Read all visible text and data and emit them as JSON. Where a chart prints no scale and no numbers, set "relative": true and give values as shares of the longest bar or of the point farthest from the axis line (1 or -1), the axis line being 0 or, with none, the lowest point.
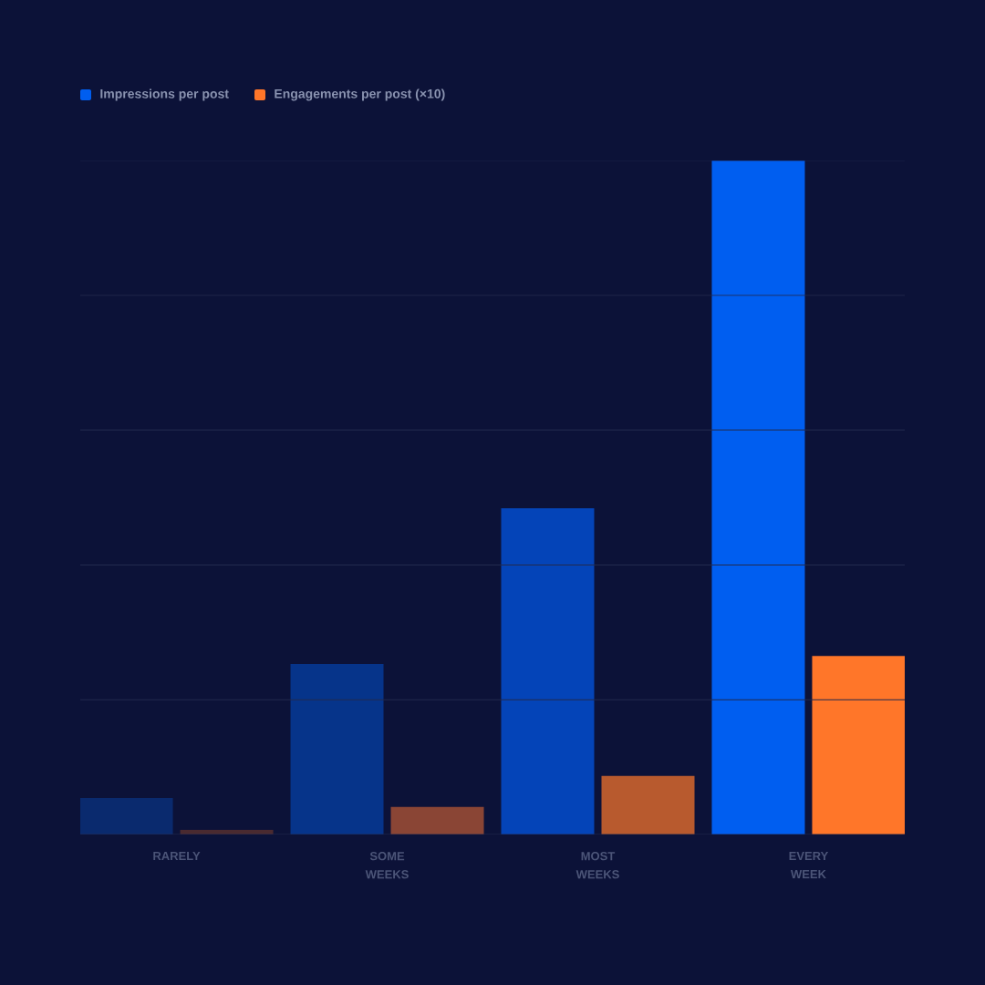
{
  "chart_data": {
    "type": "bar",
    "relative": true,
    "legend": "top left",
    "ref_lines": [
      {
        "axis": "y",
        "value": 0.2,
        "color": "#222a4e"
      },
      {
        "axis": "y",
        "value": 0.4,
        "color": "#222a4e"
      },
      {
        "axis": "y",
        "value": 0.6,
        "color": "#222a4e"
      },
      {
        "axis": "y",
        "value": 0.8,
        "color": "#222a4e"
      },
      {
        "axis": "y",
        "value": 1,
        "color": "#222a4e"
      }
    ],
    "categories": [
      "RARELY",
      "SOME WEEKS",
      "MOST WEEKS",
      "EVERY WEEK"
    ],
    "series": [
      {
        "name": "Impressions per post",
        "color": "#005ef0",
        "colors": [
          "#0a2a6e",
          "#06348a",
          "#0444b8",
          "#005ef0"
        ],
        "values": [
          0.054,
          0.253,
          0.484,
          1
        ]
      },
      {
        "name": "Engagements per post (×10)",
        "color": "#ff7629",
        "colors": [
          "#4a2a30",
          "#8a4535",
          "#b85a2e",
          "#ff7629"
        ],
        "values": [
          0.007,
          0.041,
          0.087,
          0.265
        ]
      }
    ]
  }
}
